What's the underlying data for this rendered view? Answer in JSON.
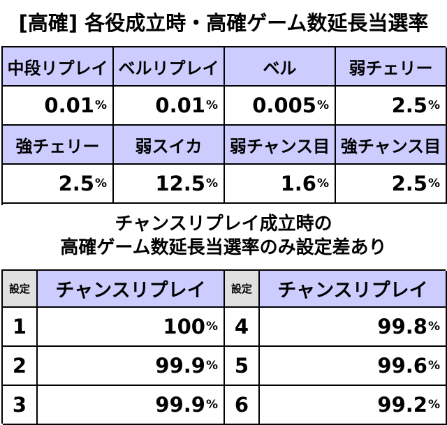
{
  "title": "[高確] 各役成立時・高確ゲーム数延長当選率",
  "roles_table": {
    "row1_headers": [
      "中段リプレイ",
      "ベルリプレイ",
      "ベル",
      "弱チェリー"
    ],
    "row1_values": [
      "0.01",
      "0.01",
      "0.005",
      "2.5"
    ],
    "row2_headers": [
      "強チェリー",
      "弱スイカ",
      "弱チャンス目",
      "強チャンス目"
    ],
    "row2_values": [
      "2.5",
      "12.5",
      "1.6",
      "2.5"
    ],
    "percent_sign": "%"
  },
  "subtitle_line1": "チャンスリプレイ成立時の",
  "subtitle_line2": "高確ゲーム数延長当選率のみ設定差あり",
  "setting_table": {
    "setting_label": "設定",
    "column_label": "チャンスリプレイ",
    "left_rows": [
      {
        "setting": "1",
        "rate": "100"
      },
      {
        "setting": "2",
        "rate": "99.9"
      },
      {
        "setting": "3",
        "rate": "99.9"
      }
    ],
    "right_rows": [
      {
        "setting": "4",
        "rate": "99.8"
      },
      {
        "setting": "5",
        "rate": "99.6"
      },
      {
        "setting": "6",
        "rate": "99.2"
      }
    ]
  },
  "colors": {
    "header_bg": "#ccccff",
    "setting_header_bg": "#e0e0e0"
  }
}
